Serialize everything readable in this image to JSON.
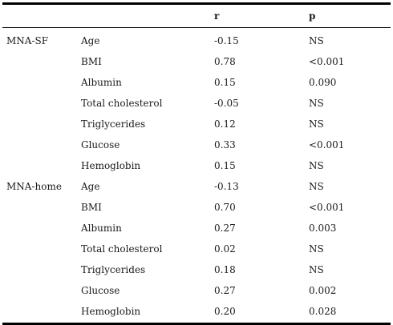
{
  "header": {
    "group": "",
    "variable": "",
    "r": "r",
    "p": "p"
  },
  "groups": [
    {
      "name": "MNA-SF",
      "rows": [
        {
          "variable": "Age",
          "r": "-0.15",
          "p": "NS"
        },
        {
          "variable": "BMI",
          "r": "0.78",
          "p": "<0.001"
        },
        {
          "variable": "Albumin",
          "r": "0.15",
          "p": "0.090"
        },
        {
          "variable": "Total cholesterol",
          "r": "-0.05",
          "p": "NS"
        },
        {
          "variable": "Triglycerides",
          "r": "0.12",
          "p": "NS"
        },
        {
          "variable": "Glucose",
          "r": "0.33",
          "p": "<0.001"
        },
        {
          "variable": "Hemoglobin",
          "r": "0.15",
          "p": "NS"
        }
      ]
    },
    {
      "name": "MNA-home",
      "rows": [
        {
          "variable": "Age",
          "r": "-0.13",
          "p": "NS"
        },
        {
          "variable": "BMI",
          "r": "0.70",
          "p": "<0.001"
        },
        {
          "variable": "Albumin",
          "r": "0.27",
          "p": "0.003"
        },
        {
          "variable": "Total cholesterol",
          "r": "0.02",
          "p": "NS"
        },
        {
          "variable": "Triglycerides",
          "r": "0.18",
          "p": "NS"
        },
        {
          "variable": "Glucose",
          "r": "0.27",
          "p": "0.002"
        },
        {
          "variable": "Hemoglobin",
          "r": "0.20",
          "p": "0.028"
        }
      ]
    }
  ]
}
